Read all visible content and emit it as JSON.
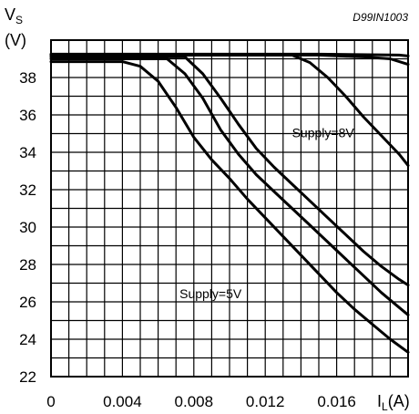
{
  "chart_data": {
    "type": "line",
    "code_label": "D99IN1003",
    "y_title_main": "V",
    "y_title_sub": "S",
    "y_unit": "(V)",
    "x_title_main": "I",
    "x_title_sub": "L",
    "x_unit": "(A)",
    "xlim": [
      0,
      0.02
    ],
    "ylim": [
      22,
      40
    ],
    "x_ticks": [
      0,
      0.004,
      0.008,
      0.012,
      0.016
    ],
    "x_tick_labels": [
      "0",
      "0.004",
      "0.008",
      "0.012",
      "0.016"
    ],
    "y_ticks": [
      22,
      24,
      26,
      28,
      30,
      32,
      34,
      36,
      38
    ],
    "y_tick_labels": [
      "22",
      "24",
      "26",
      "28",
      "30",
      "32",
      "34",
      "36",
      "38"
    ],
    "grid": true,
    "annotations": [
      {
        "text": "Supply=8V",
        "x": 0.0135,
        "y": 34.8
      },
      {
        "text": "Supply=5V",
        "x": 0.0072,
        "y": 26.2
      }
    ],
    "series": [
      {
        "x": [
          0,
          0.004,
          0.005,
          0.006,
          0.007,
          0.008,
          0.009,
          0.01,
          0.011,
          0.012,
          0.013,
          0.014,
          0.015,
          0.016,
          0.017,
          0.018,
          0.019,
          0.02
        ],
        "y": [
          38.85,
          38.85,
          38.6,
          37.8,
          36.4,
          34.8,
          33.6,
          32.6,
          31.5,
          30.5,
          29.5,
          28.5,
          27.5,
          26.5,
          25.6,
          24.8,
          24.0,
          23.3
        ]
      },
      {
        "x": [
          0,
          0.0065,
          0.0075,
          0.0085,
          0.0095,
          0.0105,
          0.0115,
          0.0125,
          0.0135,
          0.0145,
          0.0155,
          0.0165,
          0.0175,
          0.0185,
          0.0195,
          0.02
        ],
        "y": [
          39.0,
          39.0,
          38.2,
          36.9,
          35.2,
          33.9,
          32.8,
          31.9,
          31.0,
          30.1,
          29.2,
          28.3,
          27.4,
          26.5,
          25.7,
          25.3
        ]
      },
      {
        "x": [
          0,
          0.0075,
          0.0085,
          0.0095,
          0.0105,
          0.0115,
          0.0125,
          0.0135,
          0.0145,
          0.0155,
          0.0165,
          0.0175,
          0.0185,
          0.0195,
          0.02
        ],
        "y": [
          39.1,
          39.1,
          38.2,
          36.9,
          35.5,
          34.2,
          33.2,
          32.3,
          31.4,
          30.5,
          29.6,
          28.7,
          27.9,
          27.2,
          26.9
        ]
      },
      {
        "x": [
          0,
          0.0135,
          0.0145,
          0.0155,
          0.0165,
          0.0175,
          0.0185,
          0.0195,
          0.02
        ],
        "y": [
          39.2,
          39.2,
          38.8,
          38.0,
          37.0,
          35.9,
          34.9,
          33.9,
          33.3
        ]
      },
      {
        "x": [
          0,
          0.0025,
          0.005,
          0.0075,
          0.01,
          0.0125,
          0.015,
          0.0175,
          0.019,
          0.02
        ],
        "y": [
          39.2,
          39.2,
          39.2,
          39.2,
          39.2,
          39.2,
          39.2,
          39.1,
          39.0,
          38.7
        ]
      },
      {
        "x": [
          0,
          0.0075,
          0.015,
          0.0195,
          0.02
        ],
        "y": [
          39.25,
          39.25,
          39.25,
          39.2,
          39.15
        ]
      }
    ]
  }
}
